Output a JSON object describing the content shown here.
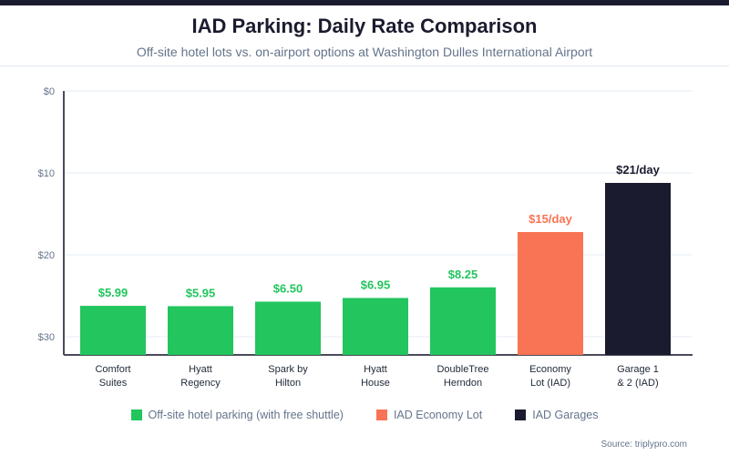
{
  "header": {
    "title": "IAD Parking: Daily Rate Comparison",
    "subtitle": "Off-site hotel lots vs. on-airport options at Washington Dulles International Airport"
  },
  "chart_data": {
    "type": "bar",
    "title": "IAD Parking: Daily Rate Comparison",
    "categories": [
      [
        "Comfort",
        "Suites"
      ],
      [
        "Hyatt",
        "Regency"
      ],
      [
        "Spark by",
        "Hilton"
      ],
      [
        "Hyatt",
        "House"
      ],
      [
        "DoubleTree",
        "Herndon"
      ],
      [
        "Economy",
        "Lot (IAD)"
      ],
      [
        "Garage 1",
        "& 2 (IAD)"
      ]
    ],
    "values": [
      5.99,
      5.95,
      6.5,
      6.95,
      8.25,
      15,
      21
    ],
    "data_labels": [
      "$5.99",
      "$5.95",
      "$6.50",
      "$6.95",
      "$8.25",
      "$15/day",
      "$21/day"
    ],
    "groups": [
      0,
      0,
      0,
      0,
      0,
      1,
      2
    ],
    "y_ticks": [
      "$0",
      "$10",
      "$20",
      "$30"
    ],
    "y_tick_values": [
      0,
      10,
      20,
      30
    ],
    "y_axis_inverted": true,
    "grid": true,
    "legend_position": "bottom",
    "legend": [
      {
        "label": "Off-site hotel parking (with free shuttle)",
        "color": "#22c55e"
      },
      {
        "label": "IAD Economy Lot",
        "color": "#f87454"
      },
      {
        "label": "IAD Garages",
        "color": "#1b1b2f"
      }
    ],
    "label_colors": [
      "#22c55e",
      "#f87454",
      "#1b1b2f"
    ]
  },
  "footer": {
    "source": "Source: triplypro.com"
  }
}
